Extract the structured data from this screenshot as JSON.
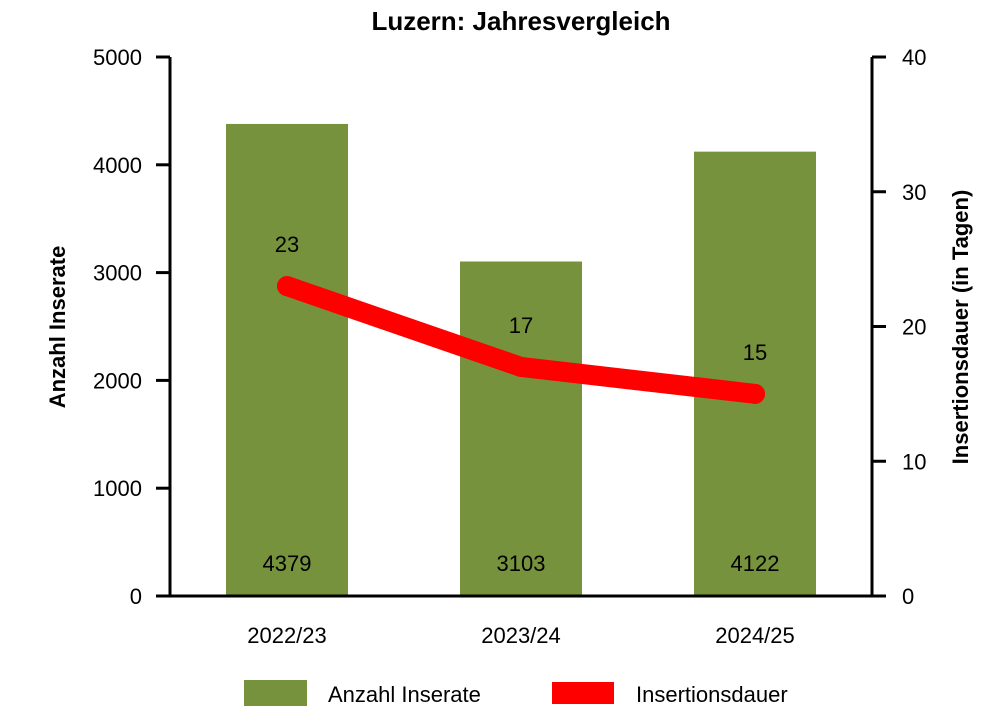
{
  "chart_data": {
    "type": "bar",
    "title": "Luzern: Jahresvergleich",
    "categories": [
      "2022/23",
      "2023/24",
      "2024/25"
    ],
    "ylabel_left": "Anzahl Inserate",
    "ylabel_right": "Insertionsdauer (in Tagen)",
    "ylim_left": [
      0,
      5000
    ],
    "ylim_right": [
      0,
      40
    ],
    "yticks_left": [
      "0",
      "1000",
      "2000",
      "3000",
      "4000",
      "5000"
    ],
    "yticks_right": [
      "0",
      "10",
      "20",
      "30",
      "40"
    ],
    "grid": false,
    "legend_position": "bottom",
    "series": [
      {
        "name": "Anzahl Inserate",
        "kind": "bar",
        "axis": "left",
        "color": "#76923c",
        "values": [
          4379,
          3103,
          4122
        ],
        "labels": [
          "4379",
          "3103",
          "4122"
        ]
      },
      {
        "name": "Insertionsdauer",
        "kind": "line",
        "axis": "right",
        "color": "#ff0000",
        "values": [
          23,
          17,
          15
        ],
        "labels": [
          "23",
          "17",
          "15"
        ]
      }
    ]
  }
}
